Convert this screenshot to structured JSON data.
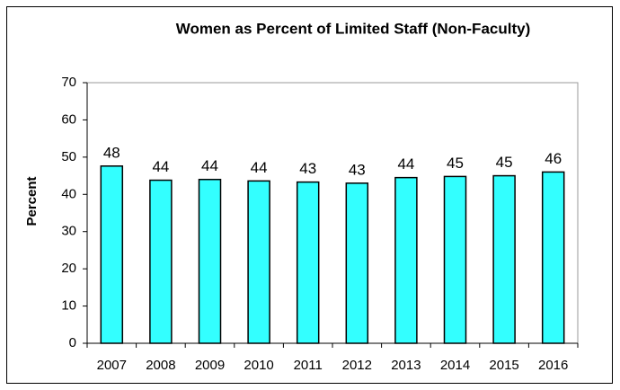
{
  "chart_data": {
    "type": "bar",
    "title": "Women as Percent of Limited Staff (Non-Faculty)",
    "y_label": "Percent",
    "categories": [
      "2007",
      "2008",
      "2009",
      "2010",
      "2011",
      "2012",
      "2013",
      "2014",
      "2015",
      "2016"
    ],
    "values": [
      47.6,
      43.8,
      44.0,
      43.6,
      43.3,
      43.0,
      44.5,
      44.8,
      45.0,
      46.0
    ],
    "value_labels": [
      "48",
      "44",
      "44",
      "44",
      "43",
      "43",
      "44",
      "45",
      "45",
      "46"
    ],
    "color": "#33ffff",
    "ylim": [
      0,
      70
    ],
    "yticks": [
      0,
      10,
      20,
      30,
      40,
      50,
      60,
      70
    ],
    "grid": false
  }
}
